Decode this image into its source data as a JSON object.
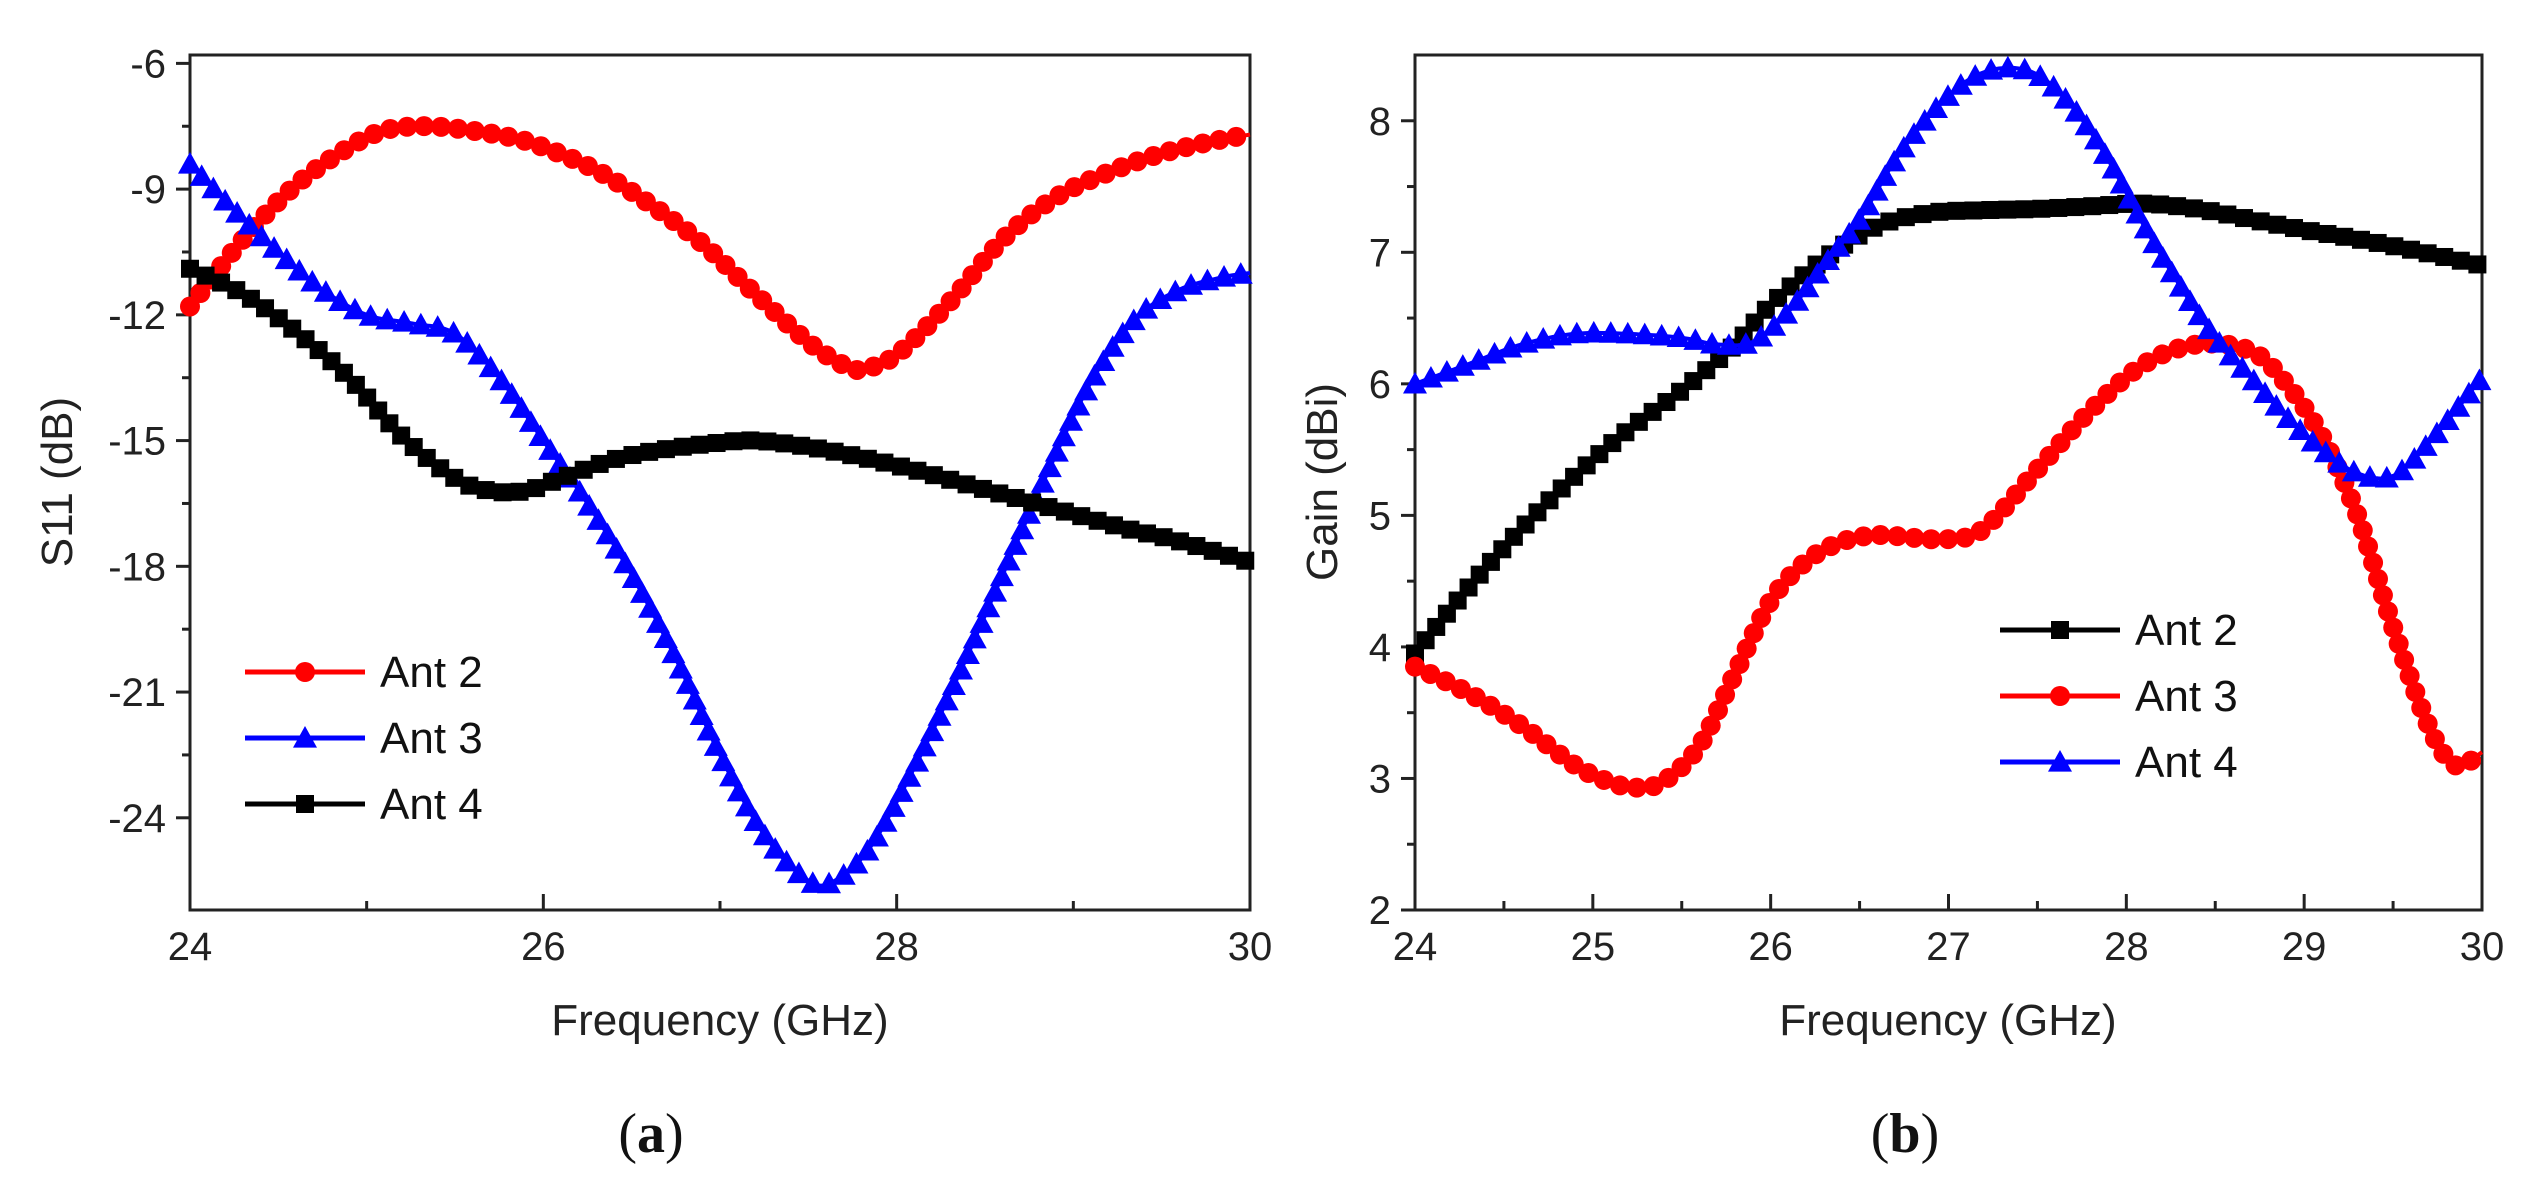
{
  "chart_data": [
    {
      "type": "line",
      "panel_label": "(a)",
      "panel_letter": "a",
      "title": "",
      "xlabel": "Frequency (GHz)",
      "ylabel": "S11 (dB)",
      "xlim": [
        24,
        30
      ],
      "ylim": [
        -26.2,
        -5.8
      ],
      "xticks": [
        24,
        26,
        28,
        30
      ],
      "yticks": [
        -24,
        -21,
        -18,
        -15,
        -12,
        -9,
        -6
      ],
      "grid": false,
      "legend_position": "bottom-left",
      "series": [
        {
          "name": "Ant 2",
          "color": "#ff0000",
          "marker": "circle",
          "x": [
            24.0,
            24.3,
            24.6,
            24.9,
            25.1,
            25.3,
            25.5,
            25.8,
            26.0,
            26.3,
            26.6,
            26.9,
            27.2,
            27.5,
            27.7,
            27.8,
            28.0,
            28.3,
            28.6,
            28.9,
            29.2,
            29.5,
            29.8,
            30.0
          ],
          "y": [
            -11.8,
            -10.2,
            -8.9,
            -8.0,
            -7.6,
            -7.5,
            -7.55,
            -7.75,
            -8.0,
            -8.55,
            -9.35,
            -10.3,
            -11.5,
            -12.65,
            -13.2,
            -13.3,
            -12.95,
            -11.7,
            -10.2,
            -9.2,
            -8.6,
            -8.15,
            -7.85,
            -7.7
          ]
        },
        {
          "name": "Ant 3",
          "color": "#0000ff",
          "marker": "triangle",
          "x": [
            24.0,
            24.25,
            24.5,
            24.75,
            25.0,
            25.25,
            25.5,
            25.75,
            26.0,
            26.25,
            26.5,
            26.75,
            27.0,
            27.25,
            27.5,
            27.65,
            27.85,
            28.1,
            28.35,
            28.6,
            28.85,
            29.1,
            29.35,
            29.6,
            29.85,
            30.0
          ],
          "y": [
            -8.4,
            -9.5,
            -10.5,
            -11.4,
            -12.0,
            -12.2,
            -12.45,
            -13.5,
            -15.0,
            -16.5,
            -18.2,
            -20.2,
            -22.5,
            -24.4,
            -25.5,
            -25.5,
            -24.7,
            -22.8,
            -20.6,
            -18.2,
            -15.8,
            -13.6,
            -12.1,
            -11.4,
            -11.1,
            -11.0
          ]
        },
        {
          "name": "Ant 4",
          "color": "#000000",
          "marker": "square",
          "x": [
            24.0,
            24.3,
            24.6,
            24.9,
            25.2,
            25.5,
            25.7,
            25.9,
            26.1,
            26.4,
            26.7,
            27.0,
            27.2,
            27.5,
            27.8,
            28.1,
            28.4,
            28.7,
            29.0,
            29.3,
            29.6,
            30.0
          ],
          "y": [
            -10.9,
            -11.5,
            -12.4,
            -13.5,
            -14.9,
            -15.9,
            -16.2,
            -16.2,
            -15.9,
            -15.45,
            -15.2,
            -15.05,
            -15.0,
            -15.15,
            -15.4,
            -15.7,
            -16.05,
            -16.4,
            -16.75,
            -17.1,
            -17.4,
            -17.9
          ]
        }
      ]
    },
    {
      "type": "line",
      "panel_label": "(b)",
      "panel_letter": "b",
      "title": "",
      "xlabel": "Frequency (GHz)",
      "ylabel": "Gain (dBi)",
      "xlim": [
        24,
        30
      ],
      "ylim": [
        2,
        8.5
      ],
      "xticks": [
        24,
        25,
        26,
        27,
        28,
        29,
        30
      ],
      "yticks": [
        2,
        3,
        4,
        5,
        6,
        7,
        8
      ],
      "grid": false,
      "legend_position": "bottom-right",
      "series": [
        {
          "name": "Ant 2",
          "color": "#000000",
          "marker": "square",
          "x": [
            24.0,
            24.3,
            24.6,
            24.9,
            25.2,
            25.5,
            25.8,
            26.0,
            26.3,
            26.6,
            26.9,
            27.2,
            27.5,
            27.8,
            28.1,
            28.4,
            28.7,
            29.0,
            29.3,
            29.6,
            30.0
          ],
          "y": [
            3.95,
            4.45,
            4.9,
            5.3,
            5.65,
            5.95,
            6.3,
            6.6,
            6.95,
            7.2,
            7.3,
            7.32,
            7.33,
            7.35,
            7.37,
            7.33,
            7.25,
            7.17,
            7.1,
            7.02,
            6.9
          ]
        },
        {
          "name": "Ant 3",
          "color": "#ff0000",
          "marker": "circle",
          "x": [
            24.0,
            24.3,
            24.6,
            24.9,
            25.1,
            25.25,
            25.4,
            25.6,
            25.8,
            26.0,
            26.2,
            26.4,
            26.6,
            26.8,
            27.0,
            27.2,
            27.5,
            27.8,
            28.1,
            28.4,
            28.7,
            28.9,
            29.1,
            29.3,
            29.5,
            29.7,
            29.85,
            30.0
          ],
          "y": [
            3.85,
            3.65,
            3.4,
            3.1,
            2.97,
            2.93,
            2.98,
            3.25,
            3.8,
            4.35,
            4.65,
            4.8,
            4.85,
            4.83,
            4.82,
            4.9,
            5.35,
            5.8,
            6.15,
            6.3,
            6.25,
            6.0,
            5.6,
            5.0,
            4.15,
            3.4,
            3.1,
            3.2
          ]
        },
        {
          "name": "Ant 4",
          "color": "#0000ff",
          "marker": "triangle",
          "x": [
            24.0,
            24.3,
            24.6,
            24.9,
            25.2,
            25.5,
            25.7,
            25.9,
            26.1,
            26.3,
            26.5,
            26.7,
            26.9,
            27.1,
            27.3,
            27.5,
            27.7,
            27.9,
            28.1,
            28.3,
            28.5,
            28.7,
            28.9,
            29.1,
            29.3,
            29.5,
            29.7,
            30.0
          ],
          "y": [
            6.0,
            6.15,
            6.3,
            6.38,
            6.38,
            6.35,
            6.3,
            6.32,
            6.55,
            6.9,
            7.25,
            7.7,
            8.05,
            8.3,
            8.4,
            8.35,
            8.1,
            7.7,
            7.2,
            6.75,
            6.35,
            6.05,
            5.75,
            5.5,
            5.32,
            5.3,
            5.55,
            6.05
          ]
        }
      ]
    }
  ]
}
